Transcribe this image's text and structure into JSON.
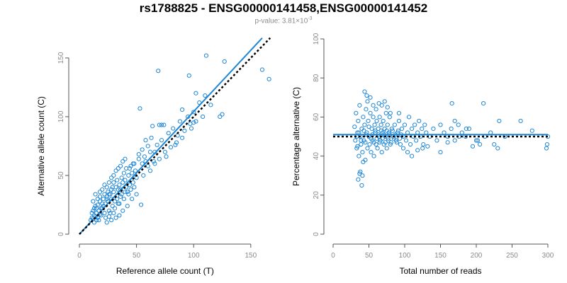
{
  "title": "rs1788825 - ENSG00000141458,ENSG00000141452",
  "subtitle_prefix": "p-value: 3.81×10",
  "subtitle_exp": "-3",
  "colors": {
    "points": "#1f87d6",
    "fit_line": "#1f87d6",
    "reference_line": "#000000"
  },
  "chart_data": [
    {
      "type": "scatter",
      "xlabel": "Reference allele count (T)",
      "ylabel": "Alternative allele count (C)",
      "xlim": [
        0,
        165
      ],
      "ylim": [
        0,
        165
      ],
      "xticks": [
        0,
        50,
        100,
        150
      ],
      "yticks": [
        0,
        50,
        100,
        150
      ],
      "grid": false,
      "fit_line": {
        "from": [
          0,
          0
        ],
        "to": [
          160,
          167
        ],
        "style": "solid"
      },
      "reference_line": {
        "from": [
          0,
          0
        ],
        "to": [
          167,
          167
        ],
        "style": "dotted"
      },
      "points": [
        [
          10,
          12
        ],
        [
          11,
          14
        ],
        [
          12,
          13
        ],
        [
          13,
          16
        ],
        [
          14,
          15
        ],
        [
          15,
          18
        ],
        [
          16,
          14
        ],
        [
          17,
          20
        ],
        [
          18,
          17
        ],
        [
          19,
          22
        ],
        [
          12,
          20
        ],
        [
          13,
          22
        ],
        [
          14,
          24
        ],
        [
          15,
          12
        ],
        [
          16,
          25
        ],
        [
          18,
          28
        ],
        [
          20,
          22
        ],
        [
          21,
          30
        ],
        [
          22,
          18
        ],
        [
          23,
          26
        ],
        [
          24,
          32
        ],
        [
          25,
          28
        ],
        [
          26,
          20
        ],
        [
          27,
          34
        ],
        [
          28,
          30
        ],
        [
          29,
          24
        ],
        [
          30,
          36
        ],
        [
          31,
          28
        ],
        [
          32,
          40
        ],
        [
          33,
          30
        ],
        [
          34,
          26
        ],
        [
          35,
          42
        ],
        [
          36,
          38
        ],
        [
          37,
          34
        ],
        [
          38,
          44
        ],
        [
          39,
          30
        ],
        [
          40,
          46
        ],
        [
          41,
          40
        ],
        [
          42,
          36
        ],
        [
          43,
          50
        ],
        [
          44,
          42
        ],
        [
          45,
          38
        ],
        [
          46,
          52
        ],
        [
          47,
          44
        ],
        [
          48,
          40
        ],
        [
          49,
          54
        ],
        [
          50,
          48
        ],
        [
          11,
          18
        ],
        [
          13,
          10
        ],
        [
          15,
          22
        ],
        [
          17,
          12
        ],
        [
          19,
          16
        ],
        [
          21,
          24
        ],
        [
          23,
          14
        ],
        [
          25,
          36
        ],
        [
          27,
          18
        ],
        [
          29,
          40
        ],
        [
          31,
          22
        ],
        [
          33,
          46
        ],
        [
          35,
          26
        ],
        [
          37,
          48
        ],
        [
          39,
          52
        ],
        [
          41,
          56
        ],
        [
          43,
          34
        ],
        [
          45,
          58
        ],
        [
          47,
          60
        ],
        [
          20,
          38
        ],
        [
          18,
          32
        ],
        [
          22,
          42
        ],
        [
          24,
          40
        ],
        [
          26,
          44
        ],
        [
          28,
          48
        ],
        [
          30,
          50
        ],
        [
          32,
          54
        ],
        [
          34,
          56
        ],
        [
          36,
          58
        ],
        [
          38,
          62
        ],
        [
          40,
          64
        ],
        [
          55,
          60
        ],
        [
          57,
          66
        ],
        [
          60,
          58
        ],
        [
          62,
          70
        ],
        [
          65,
          62
        ],
        [
          68,
          76
        ],
        [
          70,
          64
        ],
        [
          72,
          80
        ],
        [
          75,
          70
        ],
        [
          78,
          86
        ],
        [
          80,
          74
        ],
        [
          82,
          90
        ],
        [
          85,
          78
        ],
        [
          88,
          96
        ],
        [
          90,
          82
        ],
        [
          92,
          88
        ],
        [
          95,
          100
        ],
        [
          97,
          94
        ],
        [
          100,
          104
        ],
        [
          102,
          96
        ],
        [
          105,
          112
        ],
        [
          108,
          100
        ],
        [
          110,
          118
        ],
        [
          115,
          110
        ],
        [
          53,
          107
        ],
        [
          69,
          139
        ],
        [
          96,
          135
        ],
        [
          111,
          152
        ],
        [
          127,
          147
        ],
        [
          102,
          120
        ],
        [
          123,
          100
        ],
        [
          125,
          102
        ],
        [
          160,
          140
        ],
        [
          166,
          132
        ],
        [
          52,
          68
        ],
        [
          55,
          72
        ],
        [
          58,
          80
        ],
        [
          60,
          75
        ],
        [
          63,
          82
        ],
        [
          66,
          70
        ],
        [
          50,
          34
        ],
        [
          54,
          25
        ],
        [
          46,
          30
        ],
        [
          42,
          24
        ],
        [
          38,
          20
        ],
        [
          35,
          16
        ],
        [
          32,
          14
        ],
        [
          30,
          18
        ],
        [
          28,
          12
        ],
        [
          26,
          15
        ],
        [
          24,
          10
        ],
        [
          70,
          93
        ],
        [
          72,
          93
        ],
        [
          74,
          93
        ],
        [
          64,
          92
        ],
        [
          90,
          106
        ],
        [
          100,
          95
        ],
        [
          98,
          90
        ],
        [
          86,
          84
        ],
        [
          84,
          76
        ],
        [
          76,
          66
        ],
        [
          44,
          56
        ],
        [
          48,
          60
        ],
        [
          52,
          64
        ],
        [
          56,
          50
        ],
        [
          58,
          62
        ],
        [
          62,
          54
        ],
        [
          66,
          60
        ],
        [
          40,
          36
        ],
        [
          36,
          32
        ],
        [
          34,
          38
        ],
        [
          14,
          34
        ],
        [
          12,
          28
        ],
        [
          16,
          30
        ],
        [
          18,
          36
        ],
        [
          20,
          26
        ],
        [
          22,
          34
        ],
        [
          24,
          30
        ],
        [
          26,
          34
        ],
        [
          28,
          38
        ],
        [
          30,
          44
        ]
      ]
    },
    {
      "type": "scatter",
      "xlabel": "Total number of reads",
      "ylabel": "Percentage alternative (C)",
      "xlim": [
        0,
        300
      ],
      "ylim": [
        0,
        100
      ],
      "xticks": [
        0,
        50,
        100,
        150,
        200,
        250,
        300
      ],
      "yticks": [
        0,
        20,
        40,
        60,
        80,
        100
      ],
      "grid": false,
      "fit_line": {
        "y": 51,
        "style": "solid"
      },
      "reference_line": {
        "y": 50,
        "style": "dotted"
      },
      "points": [
        [
          30,
          55
        ],
        [
          31,
          48
        ],
        [
          32,
          62
        ],
        [
          33,
          44
        ],
        [
          34,
          52
        ],
        [
          35,
          58
        ],
        [
          36,
          40
        ],
        [
          37,
          66
        ],
        [
          38,
          50
        ],
        [
          39,
          46
        ],
        [
          40,
          54
        ],
        [
          41,
          42
        ],
        [
          42,
          60
        ],
        [
          43,
          48
        ],
        [
          44,
          56
        ],
        [
          45,
          38
        ],
        [
          46,
          64
        ],
        [
          47,
          52
        ],
        [
          48,
          44
        ],
        [
          49,
          58
        ],
        [
          50,
          50
        ],
        [
          51,
          46
        ],
        [
          52,
          62
        ],
        [
          53,
          42
        ],
        [
          54,
          54
        ],
        [
          55,
          48
        ],
        [
          56,
          60
        ],
        [
          57,
          40
        ],
        [
          58,
          56
        ],
        [
          59,
          52
        ],
        [
          60,
          46
        ],
        [
          61,
          58
        ],
        [
          62,
          44
        ],
        [
          63,
          54
        ],
        [
          64,
          50
        ],
        [
          65,
          60
        ],
        [
          66,
          48
        ],
        [
          67,
          56
        ],
        [
          68,
          42
        ],
        [
          69,
          52
        ],
        [
          70,
          58
        ],
        [
          71,
          46
        ],
        [
          72,
          54
        ],
        [
          73,
          50
        ],
        [
          74,
          62
        ],
        [
          75,
          44
        ],
        [
          76,
          56
        ],
        [
          77,
          48
        ],
        [
          78,
          52
        ],
        [
          79,
          60
        ],
        [
          80,
          46
        ],
        [
          82,
          54
        ],
        [
          84,
          50
        ],
        [
          86,
          56
        ],
        [
          88,
          48
        ],
        [
          90,
          52
        ],
        [
          92,
          58
        ],
        [
          94,
          46
        ],
        [
          96,
          54
        ],
        [
          98,
          50
        ],
        [
          100,
          56
        ],
        [
          102,
          48
        ],
        [
          104,
          52
        ],
        [
          106,
          60
        ],
        [
          108,
          46
        ],
        [
          110,
          54
        ],
        [
          112,
          50
        ],
        [
          114,
          56
        ],
        [
          116,
          48
        ],
        [
          118,
          52
        ],
        [
          120,
          58
        ],
        [
          122,
          50
        ],
        [
          124,
          54
        ],
        [
          126,
          46
        ],
        [
          128,
          56
        ],
        [
          130,
          52
        ],
        [
          135,
          50
        ],
        [
          140,
          54
        ],
        [
          145,
          48
        ],
        [
          150,
          56
        ],
        [
          155,
          52
        ],
        [
          160,
          50
        ],
        [
          165,
          54
        ],
        [
          170,
          48
        ],
        [
          175,
          56
        ],
        [
          180,
          52
        ],
        [
          185,
          50
        ],
        [
          190,
          54
        ],
        [
          200,
          48
        ],
        [
          205,
          46
        ],
        [
          210,
          67
        ],
        [
          220,
          52
        ],
        [
          230,
          44
        ],
        [
          232,
          58
        ],
        [
          262,
          58
        ],
        [
          278,
          53
        ],
        [
          298,
          44
        ],
        [
          299,
          46
        ],
        [
          300,
          50
        ],
        [
          35,
          28
        ],
        [
          37,
          31
        ],
        [
          38,
          32
        ],
        [
          40,
          25
        ],
        [
          41,
          30
        ],
        [
          42,
          37
        ],
        [
          44,
          73
        ],
        [
          47,
          71
        ],
        [
          48,
          68
        ],
        [
          52,
          70
        ],
        [
          56,
          66
        ],
        [
          60,
          64
        ],
        [
          64,
          67
        ],
        [
          68,
          66
        ],
        [
          72,
          68
        ],
        [
          76,
          65
        ],
        [
          80,
          62
        ],
        [
          92,
          62
        ],
        [
          98,
          44
        ],
        [
          104,
          42
        ],
        [
          110,
          40
        ],
        [
          118,
          43
        ],
        [
          125,
          44
        ],
        [
          132,
          45
        ],
        [
          150,
          42
        ],
        [
          160,
          47
        ],
        [
          166,
          67
        ],
        [
          170,
          58
        ],
        [
          176,
          50
        ],
        [
          186,
          54
        ],
        [
          195,
          45
        ],
        [
          202,
          48
        ],
        [
          212,
          50
        ],
        [
          225,
          46
        ],
        [
          240,
          50
        ],
        [
          33,
          50
        ],
        [
          34,
          45
        ],
        [
          36,
          52
        ],
        [
          39,
          48
        ],
        [
          43,
          53
        ],
        [
          45,
          47
        ],
        [
          46,
          51
        ],
        [
          50,
          55
        ],
        [
          53,
          49
        ],
        [
          55,
          51
        ],
        [
          57,
          47
        ],
        [
          59,
          53
        ],
        [
          61,
          49
        ],
        [
          63,
          51
        ],
        [
          65,
          47
        ],
        [
          67,
          53
        ],
        [
          69,
          49
        ],
        [
          71,
          51
        ],
        [
          73,
          47
        ],
        [
          75,
          53
        ],
        [
          77,
          49
        ],
        [
          79,
          51
        ],
        [
          81,
          47
        ],
        [
          83,
          53
        ],
        [
          85,
          49
        ],
        [
          87,
          51
        ],
        [
          89,
          47
        ],
        [
          91,
          53
        ],
        [
          93,
          49
        ],
        [
          95,
          51
        ]
      ]
    }
  ]
}
